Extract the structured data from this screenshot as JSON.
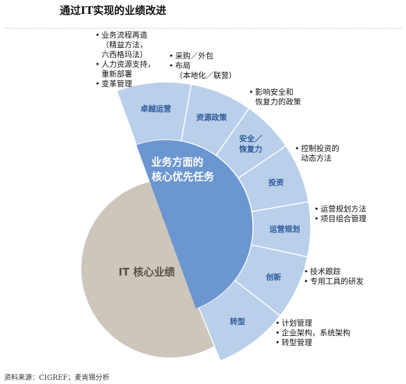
{
  "title": "通过IT实现的业绩改进",
  "core": {
    "center_line1": "业务方面的",
    "center_line2": "核心优先任务",
    "it_core": "IT 核心业绩"
  },
  "segments": [
    {
      "label_lines": [
        "卓越运营"
      ]
    },
    {
      "label_lines": [
        "资源政策"
      ]
    },
    {
      "label_lines": [
        "安全／",
        "恢复力"
      ]
    },
    {
      "label_lines": [
        "投资"
      ]
    },
    {
      "label_lines": [
        "运营规划"
      ]
    },
    {
      "label_lines": [
        "创新"
      ]
    },
    {
      "label_lines": [
        "转型"
      ]
    }
  ],
  "notes": [
    {
      "items": [
        {
          "text": "业务流程再造",
          "sub": [
            "（精益方法，",
            "六西格玛法）"
          ]
        },
        {
          "text": "人力资源支持，",
          "sub": [
            "重新部署"
          ]
        },
        {
          "text": "变革管理",
          "sub": []
        }
      ]
    },
    {
      "items": [
        {
          "text": "采购／外包",
          "sub": []
        },
        {
          "text": "布局",
          "sub": [
            "（本地化／联营）"
          ]
        }
      ]
    },
    {
      "items": [
        {
          "text": "影响安全和",
          "sub": [
            "恢复力的政策"
          ]
        }
      ]
    },
    {
      "items": [
        {
          "text": "控制投资的",
          "sub": [
            "动态方法"
          ]
        }
      ]
    },
    {
      "items": [
        {
          "text": "运营规划方法",
          "sub": []
        },
        {
          "text": "项目组合管理",
          "sub": []
        }
      ]
    },
    {
      "items": [
        {
          "text": "技术跟踪",
          "sub": []
        },
        {
          "text": "专用工具的研发",
          "sub": []
        }
      ]
    },
    {
      "items": [
        {
          "text": "计划管理",
          "sub": []
        },
        {
          "text": "企业架构，系统架构",
          "sub": []
        },
        {
          "text": "转型管理",
          "sub": []
        }
      ]
    }
  ],
  "bullet": "•",
  "footnote": "资料来源：CIGREF；麦肯锡分析",
  "colors": {
    "segment_fill": "#b9cfea",
    "segment_stroke": "#ffffff",
    "center_fill": "#6c96d0",
    "it_core_fill": "#cdc6bb",
    "segment_text": "#2f5a9a",
    "center_text": "#ffffff",
    "it_core_text": "#5a5147"
  }
}
